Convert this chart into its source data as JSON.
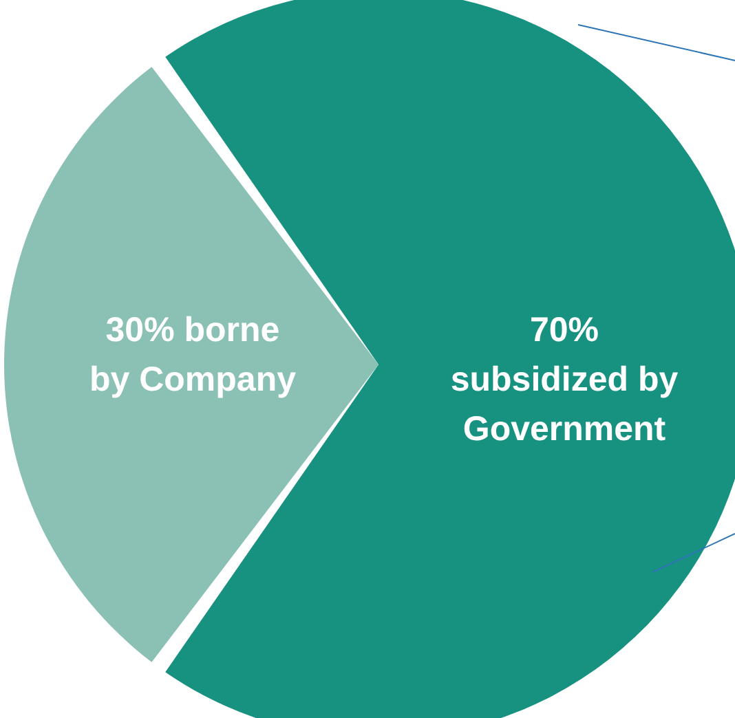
{
  "chart_data": {
    "type": "pie",
    "categories": [
      "70%\nsubsidized by\nGovernment",
      "30% borne\nby Company"
    ],
    "values": [
      70,
      30
    ],
    "colors": [
      "#179180",
      "#8bc0b5"
    ]
  }
}
